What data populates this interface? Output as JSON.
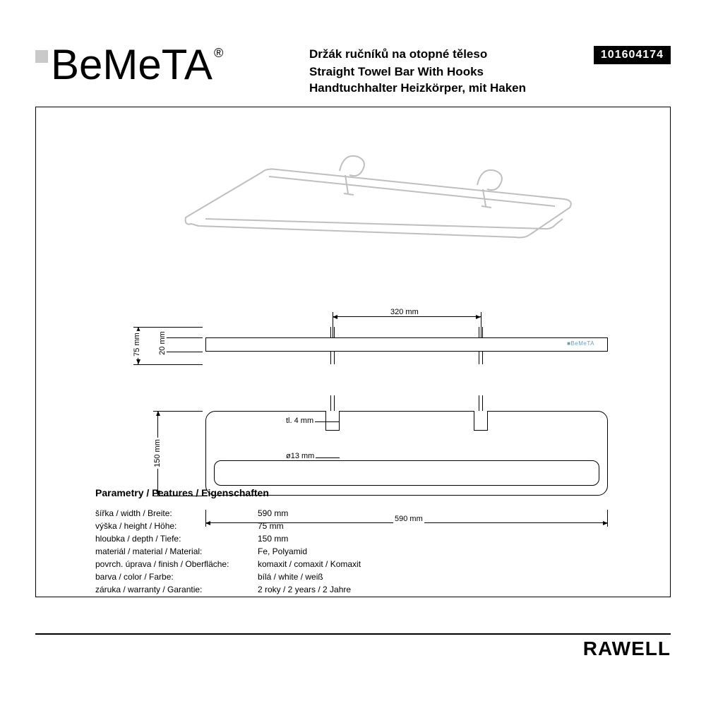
{
  "brand": {
    "logo_text": "BeMeTA",
    "registered": "®"
  },
  "header": {
    "title_cs": "Držák ručníků na otopné těleso",
    "title_en": "Straight Towel Bar With Hooks",
    "title_de": "Handtuchhalter Heizkörper, mit Haken",
    "product_code": "101604174"
  },
  "series_name": "RAWELL",
  "diagram": {
    "front_logo": "■BeMeTA",
    "dim_mount_spacing": "320 mm",
    "dim_height_overall": "75 mm",
    "dim_bar_thickness": "20 mm",
    "dim_depth": "150 mm",
    "dim_width": "590 mm",
    "dim_material_thk": "tl. 4 mm",
    "dim_tube_dia": "ø13 mm"
  },
  "features": {
    "heading": "Parametry / Features / Eigenschaften",
    "rows": [
      {
        "label": "šířka / width / Breite:",
        "value": "590 mm"
      },
      {
        "label": "výška / height / Höhe:",
        "value": "75 mm"
      },
      {
        "label": "hloubka / depth / Tiefe:",
        "value": "150 mm"
      },
      {
        "label": "materiál / material / Material:",
        "value": "Fe, Polyamid"
      },
      {
        "label": "povrch. úprava / finish / Oberfläche:",
        "value": "komaxit / comaxit / Komaxit"
      },
      {
        "label": "barva / color / Farbe:",
        "value": "bílá / white / weiß"
      },
      {
        "label": "záruka / warranty / Garantie:",
        "value": "2 roky / 2 years / 2 Jahre"
      }
    ]
  }
}
